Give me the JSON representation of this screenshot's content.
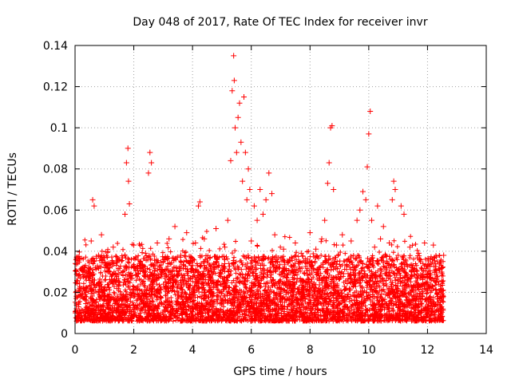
{
  "chart_data": {
    "type": "scatter",
    "title": "Day 048 of 2017, Rate Of TEC Index for receiver invr",
    "xlabel": "GPS time / hours",
    "ylabel": "ROTI / TECUs",
    "xlim": [
      0,
      14
    ],
    "ylim": [
      0,
      0.14
    ],
    "xticks": [
      0,
      2,
      4,
      6,
      8,
      10,
      12,
      14
    ],
    "yticks": [
      0,
      0.02,
      0.04,
      0.06,
      0.08,
      0.1,
      0.12,
      0.14
    ],
    "xtick_labels": [
      "0",
      "2",
      "4",
      "6",
      "8",
      "10",
      "12",
      "14"
    ],
    "ytick_labels": [
      "0",
      "0.02",
      "0.04",
      "0.06",
      "0.08",
      "0.1",
      "0.12",
      "0.14"
    ],
    "grid": true,
    "marker": "+",
    "color": "#ff0000",
    "series": [
      {
        "name": "ROTI",
        "points": [
          [
            0.05,
            0.012
          ],
          [
            0.15,
            0.022
          ],
          [
            0.25,
            0.031
          ],
          [
            0.35,
            0.018
          ],
          [
            0.45,
            0.027
          ],
          [
            0.55,
            0.045
          ],
          [
            0.6,
            0.065
          ],
          [
            0.65,
            0.062
          ],
          [
            0.7,
            0.015
          ],
          [
            0.8,
            0.038
          ],
          [
            0.9,
            0.048
          ],
          [
            1.0,
            0.021
          ],
          [
            1.1,
            0.033
          ],
          [
            1.2,
            0.017
          ],
          [
            1.3,
            0.042
          ],
          [
            1.4,
            0.026
          ],
          [
            1.5,
            0.036
          ],
          [
            1.6,
            0.019
          ],
          [
            1.7,
            0.058
          ],
          [
            1.75,
            0.083
          ],
          [
            1.8,
            0.09
          ],
          [
            1.82,
            0.074
          ],
          [
            1.85,
            0.063
          ],
          [
            1.9,
            0.028
          ],
          [
            2.0,
            0.043
          ],
          [
            2.1,
            0.016
          ],
          [
            2.2,
            0.034
          ],
          [
            2.3,
            0.025
          ],
          [
            2.4,
            0.039
          ],
          [
            2.5,
            0.078
          ],
          [
            2.55,
            0.088
          ],
          [
            2.6,
            0.083
          ],
          [
            2.7,
            0.029
          ],
          [
            2.8,
            0.044
          ],
          [
            2.9,
            0.018
          ],
          [
            3.0,
            0.035
          ],
          [
            3.1,
            0.022
          ],
          [
            3.2,
            0.046
          ],
          [
            3.3,
            0.027
          ],
          [
            3.4,
            0.052
          ],
          [
            3.5,
            0.017
          ],
          [
            3.6,
            0.038
          ],
          [
            3.7,
            0.024
          ],
          [
            3.8,
            0.049
          ],
          [
            3.9,
            0.019
          ],
          [
            4.0,
            0.031
          ],
          [
            4.1,
            0.044
          ],
          [
            4.2,
            0.062
          ],
          [
            4.25,
            0.064
          ],
          [
            4.3,
            0.028
          ],
          [
            4.4,
            0.046
          ],
          [
            4.5,
            0.015
          ],
          [
            4.6,
            0.037
          ],
          [
            4.7,
            0.026
          ],
          [
            4.8,
            0.051
          ],
          [
            4.9,
            0.02
          ],
          [
            5.0,
            0.033
          ],
          [
            5.1,
            0.042
          ],
          [
            5.2,
            0.055
          ],
          [
            5.3,
            0.084
          ],
          [
            5.35,
            0.118
          ],
          [
            5.4,
            0.135
          ],
          [
            5.42,
            0.123
          ],
          [
            5.45,
            0.1
          ],
          [
            5.5,
            0.088
          ],
          [
            5.55,
            0.105
          ],
          [
            5.6,
            0.112
          ],
          [
            5.65,
            0.093
          ],
          [
            5.7,
            0.074
          ],
          [
            5.75,
            0.115
          ],
          [
            5.8,
            0.088
          ],
          [
            5.85,
            0.065
          ],
          [
            5.9,
            0.08
          ],
          [
            5.95,
            0.07
          ],
          [
            6.0,
            0.045
          ],
          [
            6.1,
            0.062
          ],
          [
            6.2,
            0.055
          ],
          [
            6.3,
            0.07
          ],
          [
            6.4,
            0.058
          ],
          [
            6.5,
            0.065
          ],
          [
            6.6,
            0.078
          ],
          [
            6.7,
            0.068
          ],
          [
            6.8,
            0.048
          ],
          [
            6.9,
            0.032
          ],
          [
            7.0,
            0.018
          ],
          [
            7.1,
            0.041
          ],
          [
            7.2,
            0.027
          ],
          [
            7.3,
            0.036
          ],
          [
            7.4,
            0.021
          ],
          [
            7.5,
            0.044
          ],
          [
            7.6,
            0.016
          ],
          [
            7.7,
            0.039
          ],
          [
            7.8,
            0.025
          ],
          [
            7.9,
            0.034
          ],
          [
            8.0,
            0.049
          ],
          [
            8.1,
            0.019
          ],
          [
            8.2,
            0.041
          ],
          [
            8.3,
            0.028
          ],
          [
            8.4,
            0.046
          ],
          [
            8.5,
            0.055
          ],
          [
            8.6,
            0.073
          ],
          [
            8.65,
            0.083
          ],
          [
            8.7,
            0.1
          ],
          [
            8.75,
            0.101
          ],
          [
            8.8,
            0.07
          ],
          [
            8.9,
            0.043
          ],
          [
            9.0,
            0.03
          ],
          [
            9.1,
            0.048
          ],
          [
            9.2,
            0.018
          ],
          [
            9.3,
            0.036
          ],
          [
            9.4,
            0.045
          ],
          [
            9.5,
            0.026
          ],
          [
            9.6,
            0.055
          ],
          [
            9.7,
            0.06
          ],
          [
            9.8,
            0.069
          ],
          [
            9.9,
            0.065
          ],
          [
            9.95,
            0.081
          ],
          [
            10.0,
            0.097
          ],
          [
            10.05,
            0.108
          ],
          [
            10.1,
            0.055
          ],
          [
            10.2,
            0.042
          ],
          [
            10.3,
            0.062
          ],
          [
            10.4,
            0.046
          ],
          [
            10.5,
            0.052
          ],
          [
            10.6,
            0.031
          ],
          [
            10.7,
            0.044
          ],
          [
            10.8,
            0.065
          ],
          [
            10.85,
            0.074
          ],
          [
            10.9,
            0.07
          ],
          [
            11.0,
            0.038
          ],
          [
            11.1,
            0.062
          ],
          [
            11.2,
            0.058
          ],
          [
            11.3,
            0.024
          ],
          [
            11.4,
            0.042
          ],
          [
            11.5,
            0.033
          ],
          [
            11.6,
            0.018
          ],
          [
            11.7,
            0.039
          ],
          [
            11.8,
            0.028
          ],
          [
            11.9,
            0.044
          ],
          [
            12.0,
            0.021
          ],
          [
            12.1,
            0.036
          ],
          [
            12.2,
            0.043
          ],
          [
            12.3,
            0.025
          ],
          [
            12.4,
            0.017
          ],
          [
            12.5,
            0.032
          ],
          [
            12.55,
            0.038
          ]
        ]
      }
    ]
  }
}
